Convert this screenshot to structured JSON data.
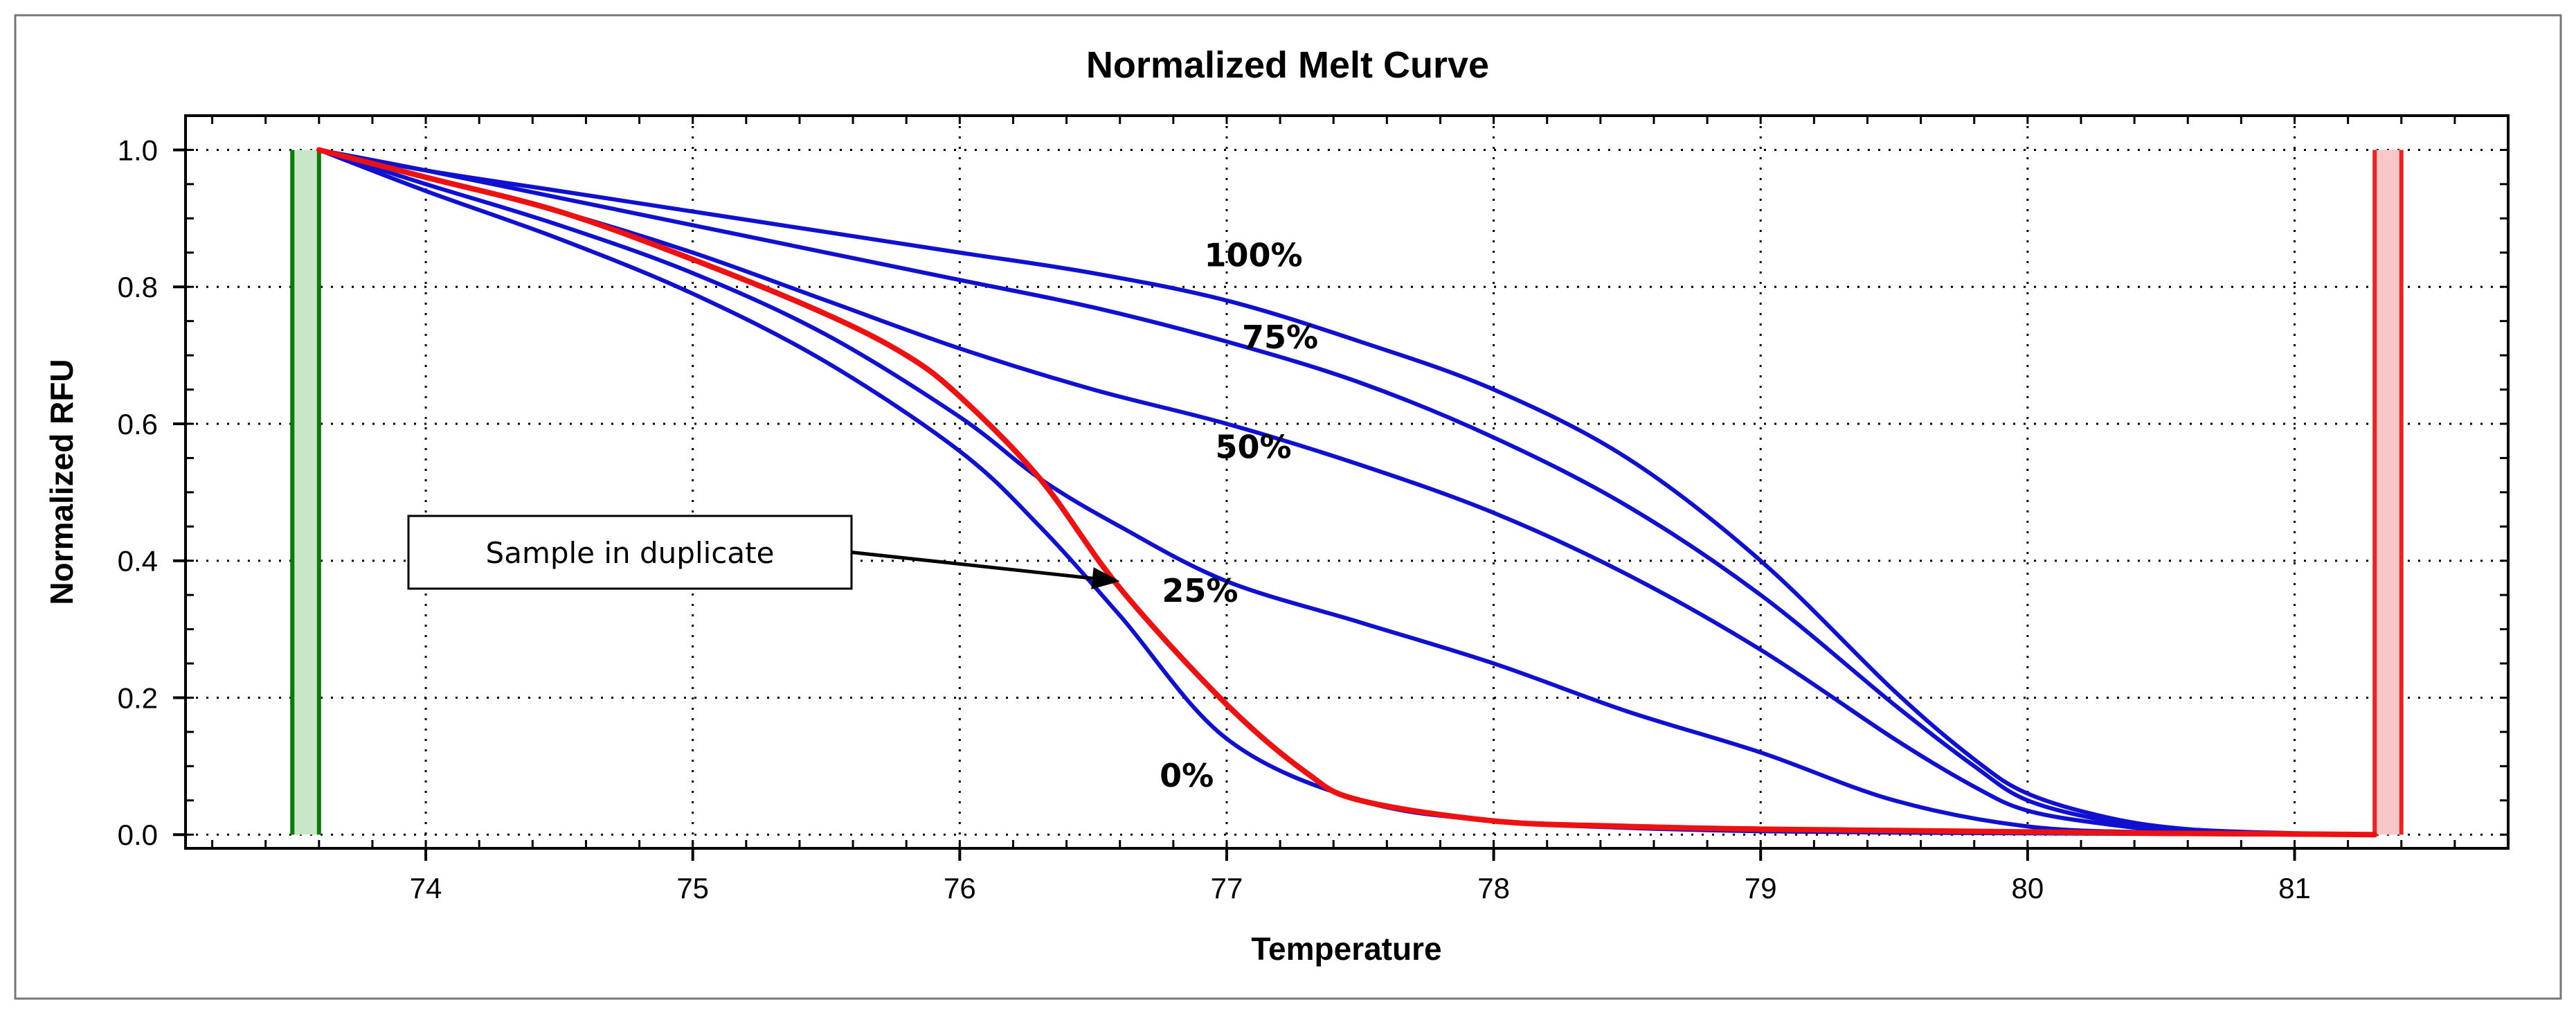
{
  "chart_data": {
    "type": "line",
    "title": "Normalized Melt Curve",
    "xlabel": "Temperature",
    "ylabel": "Normalized RFU",
    "xlim": [
      73.1,
      81.8
    ],
    "ylim": [
      -0.02,
      1.05
    ],
    "xticks": [
      74,
      75,
      76,
      77,
      78,
      79,
      80,
      81
    ],
    "yticks": [
      0.0,
      0.2,
      0.4,
      0.6,
      0.8,
      1.0
    ],
    "ytick_labels": [
      "0.0",
      "0.2",
      "0.4",
      "0.6",
      "0.8",
      "1.0"
    ],
    "grid": true,
    "colors": {
      "series": "#1010d0",
      "sample": "#ee1111",
      "start_bar": "#0a7a0a",
      "start_fill": "#c8e6c8",
      "end_bar": "#ee2222",
      "end_fill": "#f8c8c8"
    },
    "series": [
      {
        "name": "100%",
        "label": "100%",
        "label_pos": [
          77.1,
          0.83
        ],
        "x": [
          73.6,
          74,
          74.5,
          75,
          75.5,
          76,
          76.5,
          77,
          77.5,
          78,
          78.5,
          79,
          79.5,
          79.8,
          80,
          80.3,
          80.6,
          81,
          81.3
        ],
        "y": [
          1.0,
          0.97,
          0.94,
          0.91,
          0.88,
          0.85,
          0.82,
          0.78,
          0.72,
          0.65,
          0.55,
          0.4,
          0.21,
          0.11,
          0.06,
          0.025,
          0.008,
          0.002,
          0.0
        ]
      },
      {
        "name": "75%",
        "label": "75%",
        "label_pos": [
          77.2,
          0.71
        ],
        "x": [
          73.6,
          74,
          74.5,
          75,
          75.5,
          76,
          76.5,
          77,
          77.5,
          78,
          78.5,
          79,
          79.5,
          79.8,
          80,
          80.3,
          80.6,
          81,
          81.3
        ],
        "y": [
          1.0,
          0.97,
          0.93,
          0.89,
          0.85,
          0.81,
          0.77,
          0.72,
          0.66,
          0.58,
          0.48,
          0.35,
          0.19,
          0.1,
          0.05,
          0.02,
          0.006,
          0.001,
          0.0
        ]
      },
      {
        "name": "50%",
        "label": "50%",
        "label_pos": [
          77.1,
          0.55
        ],
        "x": [
          73.6,
          74,
          74.5,
          75,
          75.5,
          76,
          76.5,
          77,
          77.5,
          78,
          78.5,
          79,
          79.5,
          79.8,
          80,
          80.3,
          80.6,
          81,
          81.3
        ],
        "y": [
          1.0,
          0.96,
          0.91,
          0.85,
          0.78,
          0.71,
          0.65,
          0.6,
          0.54,
          0.47,
          0.38,
          0.27,
          0.14,
          0.07,
          0.035,
          0.015,
          0.004,
          0.001,
          0.0
        ]
      },
      {
        "name": "25%",
        "label": "25%",
        "label_pos": [
          76.9,
          0.34
        ],
        "x": [
          73.6,
          74,
          74.5,
          75,
          75.5,
          76,
          76.3,
          76.6,
          77,
          77.5,
          78,
          78.5,
          79,
          79.5,
          80,
          80.5,
          81,
          81.3
        ],
        "y": [
          1.0,
          0.95,
          0.89,
          0.82,
          0.73,
          0.61,
          0.52,
          0.45,
          0.37,
          0.31,
          0.25,
          0.18,
          0.12,
          0.05,
          0.012,
          0.003,
          0.001,
          0.0
        ]
      },
      {
        "name": "0%",
        "label": "0%",
        "label_pos": [
          76.85,
          0.07
        ],
        "x": [
          73.6,
          74,
          74.5,
          75,
          75.5,
          76,
          76.3,
          76.6,
          77,
          77.5,
          78,
          78.5,
          79,
          79.5,
          80,
          80.5,
          81,
          81.3
        ],
        "y": [
          1.0,
          0.94,
          0.87,
          0.79,
          0.69,
          0.56,
          0.45,
          0.32,
          0.14,
          0.05,
          0.02,
          0.01,
          0.005,
          0.003,
          0.002,
          0.001,
          0.0,
          0.0
        ]
      },
      {
        "name": "Sample (duplicate)",
        "x": [
          73.6,
          74,
          74.5,
          75,
          75.5,
          75.8,
          76,
          76.3,
          76.6,
          77,
          77.3,
          77.5,
          78,
          78.5,
          79,
          79.5,
          80,
          80.5,
          81,
          81.3
        ],
        "y": [
          1.0,
          0.96,
          0.91,
          0.84,
          0.76,
          0.7,
          0.64,
          0.52,
          0.36,
          0.19,
          0.09,
          0.05,
          0.02,
          0.012,
          0.008,
          0.006,
          0.004,
          0.002,
          0.001,
          0.0
        ]
      }
    ],
    "range_markers": {
      "start": [
        73.5,
        73.6
      ],
      "end": [
        81.3,
        81.4
      ]
    },
    "annotation": {
      "text": "Sample in duplicate",
      "arrow_to": [
        76.6,
        0.37
      ]
    }
  }
}
